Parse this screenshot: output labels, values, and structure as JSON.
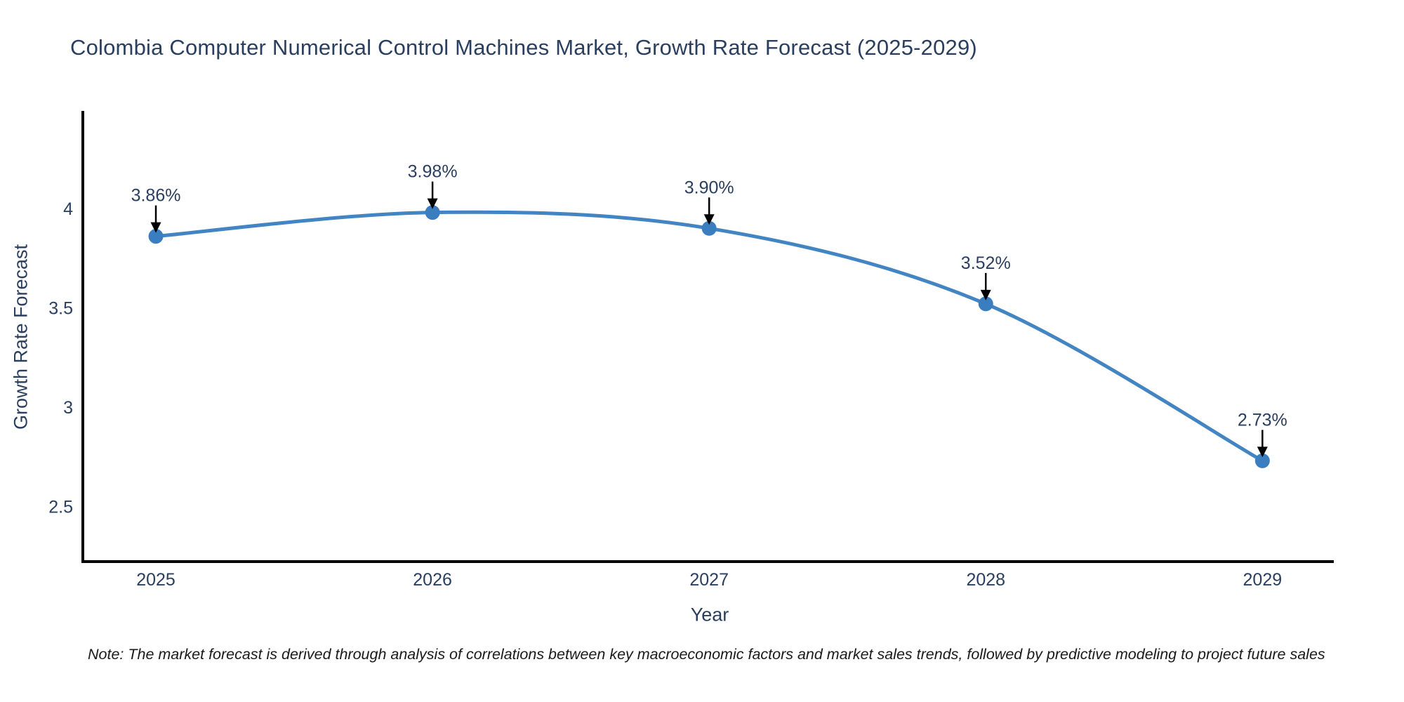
{
  "title": "Colombia Computer Numerical Control Machines Market, Growth Rate Forecast (2025-2029)",
  "note": "Note: The market forecast is derived through analysis of correlations between key macroeconomic factors and market sales trends, followed by predictive modeling to project future sales",
  "colors": {
    "background": "#ffffff",
    "title_text": "#2a3f5f",
    "axis_text": "#2a3f5f",
    "axis_line": "#000000",
    "line": "#4285c2",
    "marker": "#3a7ebf",
    "annotation_text": "#2a3f5f",
    "arrow": "#000000"
  },
  "chart_data": {
    "type": "line",
    "title": "Colombia Computer Numerical Control Machines Market, Growth Rate Forecast (2025-2029)",
    "xlabel": "Year",
    "ylabel": "Growth Rate Forecast",
    "categories": [
      2025,
      2026,
      2027,
      2028,
      2029
    ],
    "values": [
      3.86,
      3.98,
      3.9,
      3.52,
      2.73
    ],
    "annotations": [
      "3.86%",
      "3.98%",
      "3.90%",
      "3.52%",
      "2.73%"
    ],
    "series_name": "Growth Rate Forecast (%)",
    "line_shape": "spline",
    "grid": false,
    "legend_position": "none",
    "xticks": [
      {
        "value": 2025,
        "label": "2025"
      },
      {
        "value": 2026,
        "label": "2026"
      },
      {
        "value": 2027,
        "label": "2027"
      },
      {
        "value": 2028,
        "label": "2028"
      },
      {
        "value": 2029,
        "label": "2029"
      }
    ],
    "yticks": [
      {
        "value": 2.5,
        "label": "2.5"
      },
      {
        "value": 3,
        "label": "3"
      },
      {
        "value": 3.5,
        "label": "3.5"
      },
      {
        "value": 4,
        "label": "4"
      }
    ],
    "xlim": [
      2024.736,
      2029.258
    ],
    "ylim": [
      2.2226,
      4.4912
    ]
  }
}
